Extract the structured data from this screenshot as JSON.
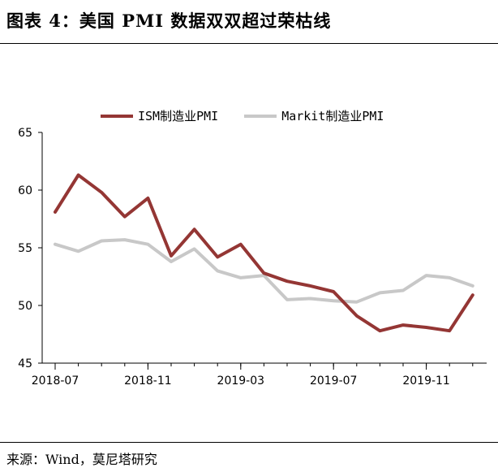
{
  "header": {
    "title": "图表 4：美国 PMI 数据双双超过荣枯线"
  },
  "footer": {
    "source": "来源：Wind，莫尼塔研究"
  },
  "colors": {
    "ism": "#943634",
    "markit": "#c8c8c8",
    "axis": "#000000"
  },
  "chart_data": {
    "type": "line",
    "title": "",
    "xlabel": "",
    "ylabel": "",
    "ylim": [
      45,
      65
    ],
    "yticks": [
      "45",
      "50",
      "55",
      "60",
      "65"
    ],
    "xtick_labels": [
      "2018-07",
      "2018-11",
      "2019-03",
      "2019-07",
      "2019-11"
    ],
    "x": [
      "2018-07",
      "2018-08",
      "2018-09",
      "2018-10",
      "2018-11",
      "2018-12",
      "2019-01",
      "2019-02",
      "2019-03",
      "2019-04",
      "2019-05",
      "2019-06",
      "2019-07",
      "2019-08",
      "2019-09",
      "2019-10",
      "2019-11",
      "2019-12",
      "2020-01"
    ],
    "legend_position": "top-center",
    "series": [
      {
        "name": "ISM制造业PMI",
        "color_key": "ism",
        "values": [
          58.1,
          61.3,
          59.8,
          57.7,
          59.3,
          54.3,
          56.6,
          54.2,
          55.3,
          52.8,
          52.1,
          51.7,
          51.2,
          49.1,
          47.8,
          48.3,
          48.1,
          47.8,
          50.9
        ]
      },
      {
        "name": "Markit制造业PMI",
        "color_key": "markit",
        "values": [
          55.3,
          54.7,
          55.6,
          55.7,
          55.3,
          53.8,
          54.9,
          53.0,
          52.4,
          52.6,
          50.5,
          50.6,
          50.4,
          50.3,
          51.1,
          51.3,
          52.6,
          52.4,
          51.7
        ]
      }
    ]
  }
}
